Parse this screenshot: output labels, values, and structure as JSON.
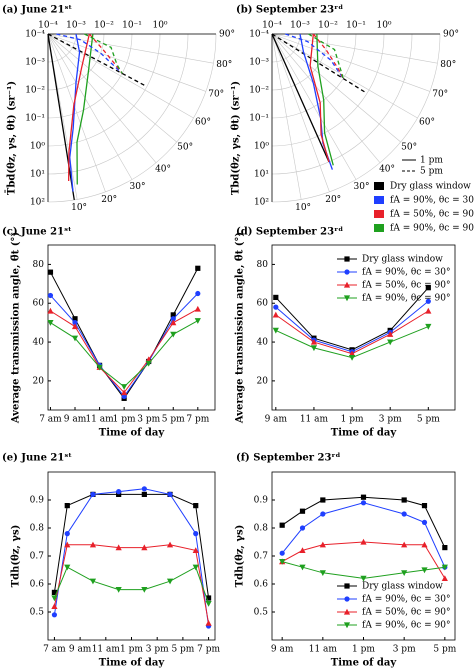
{
  "chart_data": [
    {
      "type": "polar",
      "title": "(a) June 21ˢᵗ",
      "ylabel": "T̄bd(θz, γs, θt) (sr⁻¹)",
      "rlog": true,
      "rlim": [
        0.0001,
        100
      ],
      "rticks": [
        {
          "value": 0.0001,
          "label": "10⁻⁴"
        },
        {
          "value": 0.001,
          "label": "10⁻³"
        },
        {
          "value": 0.01,
          "label": "10⁻²"
        },
        {
          "value": 0.1,
          "label": "10⁻¹"
        },
        {
          "value": 1,
          "label": "10⁰"
        },
        {
          "value": 10,
          "label": "10¹"
        },
        {
          "value": 100,
          "label": "10²"
        }
      ],
      "thetaticks": [
        {
          "value": 10,
          "label": "10°"
        },
        {
          "value": 20,
          "label": "20°"
        },
        {
          "value": 30,
          "label": "30°"
        },
        {
          "value": 40,
          "label": "40°"
        },
        {
          "value": 50,
          "label": "50°"
        },
        {
          "value": 60,
          "label": "60°"
        },
        {
          "value": 70,
          "label": "70°"
        },
        {
          "value": 80,
          "label": "80°"
        },
        {
          "value": 90,
          "label": "90°"
        }
      ],
      "series": [
        {
          "color": "#000000",
          "dash": false,
          "theta": [
            9,
            9
          ],
          "r": [
            0.0001,
            100
          ]
        },
        {
          "color": "#000000",
          "dash": true,
          "theta": [
            62,
            62
          ],
          "r": [
            0.0001,
            1
          ]
        },
        {
          "color": "#1f3fff",
          "dash": false,
          "theta": [
            90,
            60,
            30,
            15,
            10,
            9
          ],
          "r": [
            0.001,
            0.002,
            0.01,
            0.3,
            3,
            50
          ]
        },
        {
          "color": "#e8202a",
          "dash": false,
          "theta": [
            90,
            45,
            20,
            10,
            8
          ],
          "r": [
            0.003,
            0.005,
            0.05,
            2,
            20
          ]
        },
        {
          "color": "#1fa01f",
          "dash": false,
          "theta": [
            90,
            50,
            25,
            15,
            11
          ],
          "r": [
            0.004,
            0.008,
            0.1,
            1,
            30
          ]
        },
        {
          "color": "#1f3fff",
          "dash": true,
          "theta": [
            90,
            80,
            70,
            62
          ],
          "r": [
            0.0002,
            0.0015,
            0.01,
            0.1
          ]
        },
        {
          "color": "#e8202a",
          "dash": true,
          "theta": [
            90,
            75,
            65,
            62
          ],
          "r": [
            0.003,
            0.01,
            0.05,
            0.1
          ]
        },
        {
          "color": "#1fa01f",
          "dash": true,
          "theta": [
            90,
            78,
            66,
            62
          ],
          "r": [
            0.002,
            0.02,
            0.05,
            0.1
          ]
        }
      ]
    },
    {
      "type": "polar",
      "title": "(b) September 23ʳᵈ",
      "ylabel": "Tbd(θz, γs, θt) (sr⁻¹)",
      "rlog": true,
      "rlim": [
        0.0001,
        100
      ],
      "rticks": [
        {
          "value": 0.0001,
          "label": "10⁻⁴"
        },
        {
          "value": 0.001,
          "label": "10⁻³"
        },
        {
          "value": 0.01,
          "label": "10⁻²"
        },
        {
          "value": 0.1,
          "label": "10⁻¹"
        },
        {
          "value": 1,
          "label": "10⁰"
        },
        {
          "value": 10,
          "label": "10¹"
        },
        {
          "value": 100,
          "label": "10²"
        }
      ],
      "thetaticks": [
        {
          "value": 10,
          "label": "10°"
        },
        {
          "value": 20,
          "label": "20°"
        },
        {
          "value": 30,
          "label": "30°"
        },
        {
          "value": 40,
          "label": "40°"
        },
        {
          "value": 50,
          "label": "50°"
        },
        {
          "value": 60,
          "label": "60°"
        },
        {
          "value": 70,
          "label": "70°"
        },
        {
          "value": 80,
          "label": "80°"
        },
        {
          "value": 90,
          "label": "90°"
        }
      ],
      "series": [
        {
          "color": "#000000",
          "dash": false,
          "theta": [
            24,
            24
          ],
          "r": [
            0.0001,
            10
          ]
        },
        {
          "color": "#000000",
          "dash": true,
          "theta": [
            58,
            58
          ],
          "r": [
            0.0001,
            1
          ]
        },
        {
          "color": "#1f3fff",
          "dash": false,
          "theta": [
            90,
            60,
            40,
            30,
            25,
            24
          ],
          "r": [
            0.001,
            0.002,
            0.02,
            0.3,
            2,
            20
          ]
        },
        {
          "color": "#e8202a",
          "dash": false,
          "theta": [
            90,
            50,
            35,
            26,
            24
          ],
          "r": [
            0.003,
            0.006,
            0.1,
            1,
            10
          ]
        },
        {
          "color": "#1fa01f",
          "dash": false,
          "theta": [
            90,
            55,
            38,
            28,
            25
          ],
          "r": [
            0.004,
            0.01,
            0.1,
            1,
            15
          ]
        },
        {
          "color": "#1f3fff",
          "dash": true,
          "theta": [
            90,
            78,
            66,
            58
          ],
          "r": [
            0.0003,
            0.002,
            0.02,
            0.1
          ]
        },
        {
          "color": "#e8202a",
          "dash": true,
          "theta": [
            90,
            74,
            62,
            58
          ],
          "r": [
            0.003,
            0.01,
            0.05,
            0.1
          ]
        },
        {
          "color": "#1fa01f",
          "dash": true,
          "theta": [
            90,
            76,
            64,
            58
          ],
          "r": [
            0.002,
            0.02,
            0.05,
            0.1
          ]
        }
      ],
      "legend": {
        "entries": [
          {
            "name": "Dry glass window",
            "color": "#000000"
          },
          {
            "name": "fA = 90%, θc = 30°",
            "color": "#1f3fff"
          },
          {
            "name": "fA = 50%, θc = 90°",
            "color": "#e8202a"
          },
          {
            "name": "fA = 90%, θc = 90°",
            "color": "#1fa01f"
          }
        ],
        "styles": [
          {
            "name": "1 pm",
            "dash": false
          },
          {
            "name": "5 pm",
            "dash": true
          }
        ]
      }
    },
    {
      "type": "line",
      "title": "(c) June 21ˢᵗ",
      "xlabel": "Time of day",
      "ylabel": "Average transmission angle, θ̄t (°)",
      "categories": [
        "7 am",
        "9 am",
        "11 am",
        "1 pm",
        "3 pm",
        "5 pm",
        "7 pm"
      ],
      "ylim": [
        5,
        90
      ],
      "yticks": [
        20,
        40,
        60,
        80
      ],
      "series": [
        {
          "color": "#000000",
          "marker": "square",
          "values": [
            76,
            52,
            28,
            11,
            30,
            54,
            78
          ]
        },
        {
          "color": "#1f3fff",
          "marker": "circle",
          "values": [
            64,
            50,
            28,
            12,
            30,
            52,
            65
          ]
        },
        {
          "color": "#e8202a",
          "marker": "triangle-up",
          "values": [
            56,
            48,
            27,
            14,
            31,
            50,
            57
          ]
        },
        {
          "color": "#1fa01f",
          "marker": "triangle-down",
          "values": [
            50,
            42,
            27,
            17,
            29,
            44,
            51
          ]
        }
      ]
    },
    {
      "type": "line",
      "title": "(d) September 23ʳᵈ",
      "xlabel": "Time of day",
      "ylabel": "Average transmission angle, θ̄t (°)",
      "categories": [
        "9 am",
        "11 am",
        "1 pm",
        "3 pm",
        "5 pm"
      ],
      "ylim": [
        5,
        90
      ],
      "yticks": [
        20,
        40,
        60,
        80
      ],
      "legend": "upper right",
      "series": [
        {
          "name": "Dry glass window",
          "color": "#000000",
          "marker": "square",
          "values": [
            63,
            42,
            36,
            46,
            68
          ]
        },
        {
          "name": "fA = 90%, θc = 30°",
          "color": "#1f3fff",
          "marker": "circle",
          "values": [
            58,
            41,
            35,
            45,
            61
          ]
        },
        {
          "name": "fA = 50%, θc = 90°",
          "color": "#e8202a",
          "marker": "triangle-up",
          "values": [
            54,
            40,
            34,
            44,
            56
          ]
        },
        {
          "name": "fA = 90%, θc = 90°",
          "color": "#1fa01f",
          "marker": "triangle-down",
          "values": [
            46,
            37,
            32,
            40,
            48
          ]
        }
      ]
    },
    {
      "type": "line",
      "title": "(e) June 21ˢᵗ",
      "xlabel": "Time of day",
      "ylabel": "Tdh(θz, γs)",
      "x": [
        7,
        8,
        10,
        12,
        14,
        16,
        18,
        19
      ],
      "xlim": [
        6.5,
        19.5
      ],
      "xticks": [
        {
          "value": 7,
          "label": "7 am"
        },
        {
          "value": 9,
          "label": "9 am"
        },
        {
          "value": 11,
          "label": "11 am"
        },
        {
          "value": 13,
          "label": "1 pm"
        },
        {
          "value": 15,
          "label": "3 pm"
        },
        {
          "value": 17,
          "label": "5 pm"
        },
        {
          "value": 19,
          "label": "7 pm"
        }
      ],
      "ylim": [
        0.4,
        1.0
      ],
      "yticks": [
        0.5,
        0.6,
        0.7,
        0.8,
        0.9
      ],
      "series": [
        {
          "color": "#000000",
          "marker": "square",
          "values": [
            0.57,
            0.88,
            0.92,
            0.92,
            0.92,
            0.92,
            0.88,
            0.55
          ]
        },
        {
          "color": "#1f3fff",
          "marker": "circle",
          "values": [
            0.49,
            0.78,
            0.92,
            0.93,
            0.94,
            0.92,
            0.78,
            0.45
          ]
        },
        {
          "color": "#e8202a",
          "marker": "triangle-up",
          "values": [
            0.52,
            0.74,
            0.74,
            0.73,
            0.73,
            0.74,
            0.72,
            0.46
          ]
        },
        {
          "color": "#1fa01f",
          "marker": "triangle-down",
          "values": [
            0.55,
            0.66,
            0.61,
            0.58,
            0.58,
            0.61,
            0.66,
            0.53
          ]
        }
      ]
    },
    {
      "type": "line",
      "title": "(f) September 23ʳᵈ",
      "xlabel": "Time of day",
      "ylabel": "Tdh(θz, γs)",
      "x": [
        9,
        10,
        11,
        13,
        15,
        16,
        17
      ],
      "xlim": [
        8.5,
        17.5
      ],
      "xticks": [
        {
          "value": 9,
          "label": "9 am"
        },
        {
          "value": 11,
          "label": "11 am"
        },
        {
          "value": 13,
          "label": "1 pm"
        },
        {
          "value": 15,
          "label": "3 pm"
        },
        {
          "value": 17,
          "label": "5 pm"
        }
      ],
      "ylim": [
        0.4,
        1.0
      ],
      "yticks": [
        0.5,
        0.6,
        0.7,
        0.8,
        0.9
      ],
      "legend": "lower right",
      "series": [
        {
          "name": "Dry glass window",
          "color": "#000000",
          "marker": "square",
          "values": [
            0.81,
            0.86,
            0.9,
            0.91,
            0.9,
            0.88,
            0.73
          ]
        },
        {
          "name": "fA = 90%, θc = 30°",
          "color": "#1f3fff",
          "marker": "circle",
          "values": [
            0.71,
            0.8,
            0.85,
            0.89,
            0.85,
            0.82,
            0.66
          ]
        },
        {
          "name": "fA = 50%, θc = 90°",
          "color": "#e8202a",
          "marker": "triangle-up",
          "values": [
            0.68,
            0.72,
            0.74,
            0.75,
            0.74,
            0.74,
            0.62
          ]
        },
        {
          "name": "fA = 90%, θc = 90°",
          "color": "#1fa01f",
          "marker": "triangle-down",
          "values": [
            0.68,
            0.66,
            0.64,
            0.62,
            0.64,
            0.65,
            0.66
          ]
        }
      ]
    }
  ]
}
